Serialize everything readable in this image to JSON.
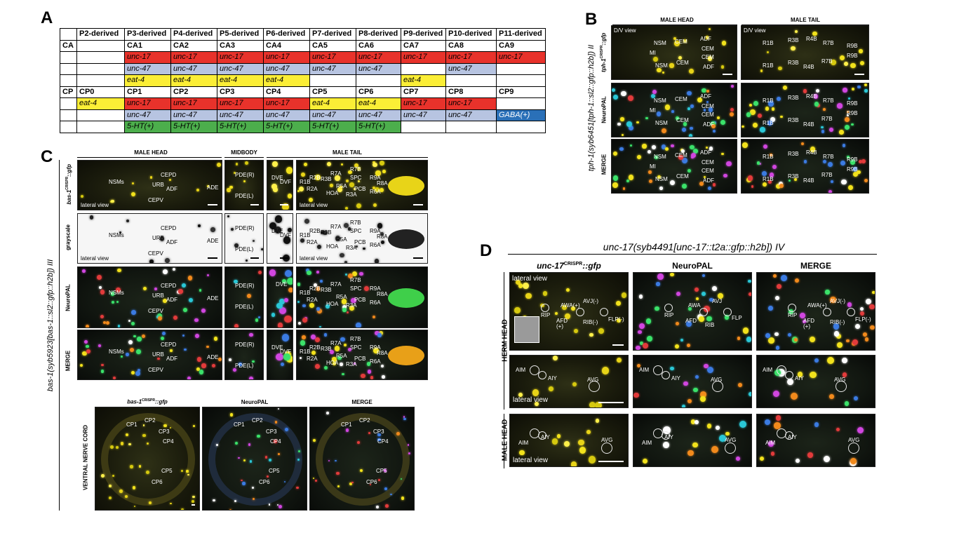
{
  "panels": {
    "a": "A",
    "b": "B",
    "c": "C",
    "d": "D"
  },
  "table": {
    "header": [
      "",
      "P2-derived",
      "P3-derived",
      "P4-derived",
      "P5-derived",
      "P6-derived",
      "P7-derived",
      "P8-derived",
      "P9-derived",
      "P10-derived",
      "P11-derived"
    ],
    "rows": [
      {
        "style": "bold",
        "cells": [
          "CA",
          "",
          "CA1",
          "CA2",
          "CA3",
          "CA4",
          "CA5",
          "CA6",
          "CA7",
          "CA8",
          "CA9"
        ]
      },
      {
        "cells": [
          "",
          "",
          "unc-17",
          "unc-17",
          "unc-17",
          "unc-17",
          "unc-17",
          "unc-17",
          "unc-17",
          "unc-17",
          "unc-17"
        ],
        "colors": [
          "",
          "",
          "red",
          "red",
          "red",
          "red",
          "red",
          "red",
          "red",
          "red",
          "red"
        ]
      },
      {
        "cells": [
          "",
          "",
          "unc-47",
          "unc-47",
          "unc-47",
          "unc-47",
          "unc-47",
          "unc-47",
          "",
          "unc-47",
          ""
        ],
        "colors": [
          "",
          "",
          "blue",
          "blue",
          "blue",
          "blue",
          "blue",
          "blue",
          "",
          "blue",
          ""
        ]
      },
      {
        "cells": [
          "",
          "",
          "eat-4",
          "eat-4",
          "eat-4",
          "eat-4",
          "",
          "",
          "eat-4",
          "",
          ""
        ],
        "colors": [
          "",
          "",
          "yellow",
          "yellow",
          "yellow",
          "yellow",
          "",
          "",
          "yellow",
          "",
          ""
        ]
      },
      {
        "style": "bold",
        "cells": [
          "CP",
          "CP0",
          "CP1",
          "CP2",
          "CP3",
          "CP4",
          "CP5",
          "CP6",
          "CP7",
          "CP8",
          "CP9"
        ]
      },
      {
        "cells": [
          "",
          "eat-4",
          "unc-17",
          "unc-17",
          "unc-17",
          "unc-17",
          "eat-4",
          "eat-4",
          "unc-17",
          "unc-17",
          ""
        ],
        "colors": [
          "",
          "yellow",
          "red",
          "red",
          "red",
          "red",
          "yellow",
          "yellow",
          "red",
          "red",
          ""
        ]
      },
      {
        "cells": [
          "",
          "",
          "unc-47",
          "unc-47",
          "unc-47",
          "unc-47",
          "unc-47",
          "unc-47",
          "unc-47",
          "unc-47",
          "GABA(+)"
        ],
        "colors": [
          "",
          "",
          "blue",
          "blue",
          "blue",
          "blue",
          "blue",
          "blue",
          "blue",
          "blue",
          "gaba"
        ]
      },
      {
        "cells": [
          "",
          "",
          "5-HT(+)",
          "5-HT(+)",
          "5-HT(+)",
          "5-HT(+)",
          "5-HT(+)",
          "5-HT(+)",
          "",
          "",
          ""
        ],
        "colors": [
          "",
          "",
          "green",
          "green",
          "green",
          "green",
          "green",
          "green",
          "",
          "",
          ""
        ]
      }
    ],
    "palette": {
      "red": "#e8322b",
      "blue": "#b7c4e1",
      "yellow": "#fbee36",
      "green": "#4cae4c",
      "gaba": "#2a70b8"
    }
  },
  "panelB": {
    "title_a": "tph-1(syb6451[tph-1::sl2::gfp::h2b]) II",
    "row_gfp_main": "tph-1",
    "row_gfp_sup": "CRISPR",
    "row_gfp_tail": "::gfp",
    "row_neuropal": "NeuroPAL",
    "row_merge": "MERGE",
    "col_head": "MALE HEAD",
    "col_tail": "MALE TAIL",
    "view_tag": "D/V view",
    "head_labels": [
      "NSM",
      "MI",
      "NSM",
      "CEM",
      "CEM",
      "ADF",
      "CEM",
      "CEM",
      "ADF"
    ],
    "tail_labels": [
      "R1B",
      "R3B",
      "R4B",
      "R7B",
      "R9B",
      "R9B",
      "R1B",
      "R3B",
      "R4B",
      "R7B"
    ]
  },
  "panelC": {
    "title": "bas-1(syb5923[bas-1::sl2::gfp::h2b]) III",
    "col_head": "MALE HEAD",
    "col_mid": "MIDBODY",
    "col_tail": "MALE TAIL",
    "row_gfp_main": "bas-1",
    "row_gfp_sup": "CRISPR",
    "row_gfp_tail": "::gfp",
    "row_gray": "grayscale",
    "row_neuropal": "NeuroPAL",
    "row_merge": "MERGE",
    "view_tag": "lateral view",
    "head_labels": [
      "NSMs",
      "URB",
      "CEPD",
      "ADF",
      "CEPV",
      "ADE"
    ],
    "mid_labels": [
      "PDE(R)",
      "PDE(L)"
    ],
    "tail_dve_labels": [
      "DVE",
      "DVF"
    ],
    "tail_labels": [
      "R1B",
      "R2B",
      "R3B",
      "R7A",
      "R7B",
      "SPC",
      "R9A",
      "R5A",
      "PCB",
      "R2A",
      "HOA",
      "R3A",
      "R6A",
      "R8A"
    ],
    "vnc_row": "VENTRAL NERVE CORD",
    "vnc_col_gfp_main": "bas-1",
    "vnc_col_gfp_sup": "CRISPR",
    "vnc_col_gfp_tail": "::gfp",
    "vnc_col_np": "NeuroPAL",
    "vnc_col_merge": "MERGE",
    "vnc_labels": [
      "CP1",
      "CP2",
      "CP3",
      "CP4",
      "CP5",
      "CP6"
    ]
  },
  "panelD": {
    "title": "unc-17(syb4491[unc-17::t2a::gfp::h2b]) IV",
    "col_gfp_main": "unc-17",
    "col_gfp_sup": "CRISPR",
    "col_gfp_tail": "::gfp",
    "col_np": "NeuroPAL",
    "col_merge": "MERGE",
    "row_herm": "HERM HEAD",
    "row_male": "MALE HEAD",
    "view_tag": "lateral view",
    "gfp_head_labels": [
      "RIP",
      "AWA(+)",
      "AVJ(-)",
      "AFD",
      "(+)",
      "RIB(-)",
      "FLP(-)"
    ],
    "np_head_labels": [
      "RIP",
      "AWA",
      "AVJ",
      "AFD",
      "RIB",
      "FLP"
    ],
    "merge_head_labels": [
      "RIP",
      "AWA(+)",
      "AVJ(-)",
      "AFD",
      "(+)",
      "RIB(-)",
      "FLP(-)"
    ],
    "sub_labels": [
      "AIM",
      "AIY",
      "AVG"
    ]
  }
}
